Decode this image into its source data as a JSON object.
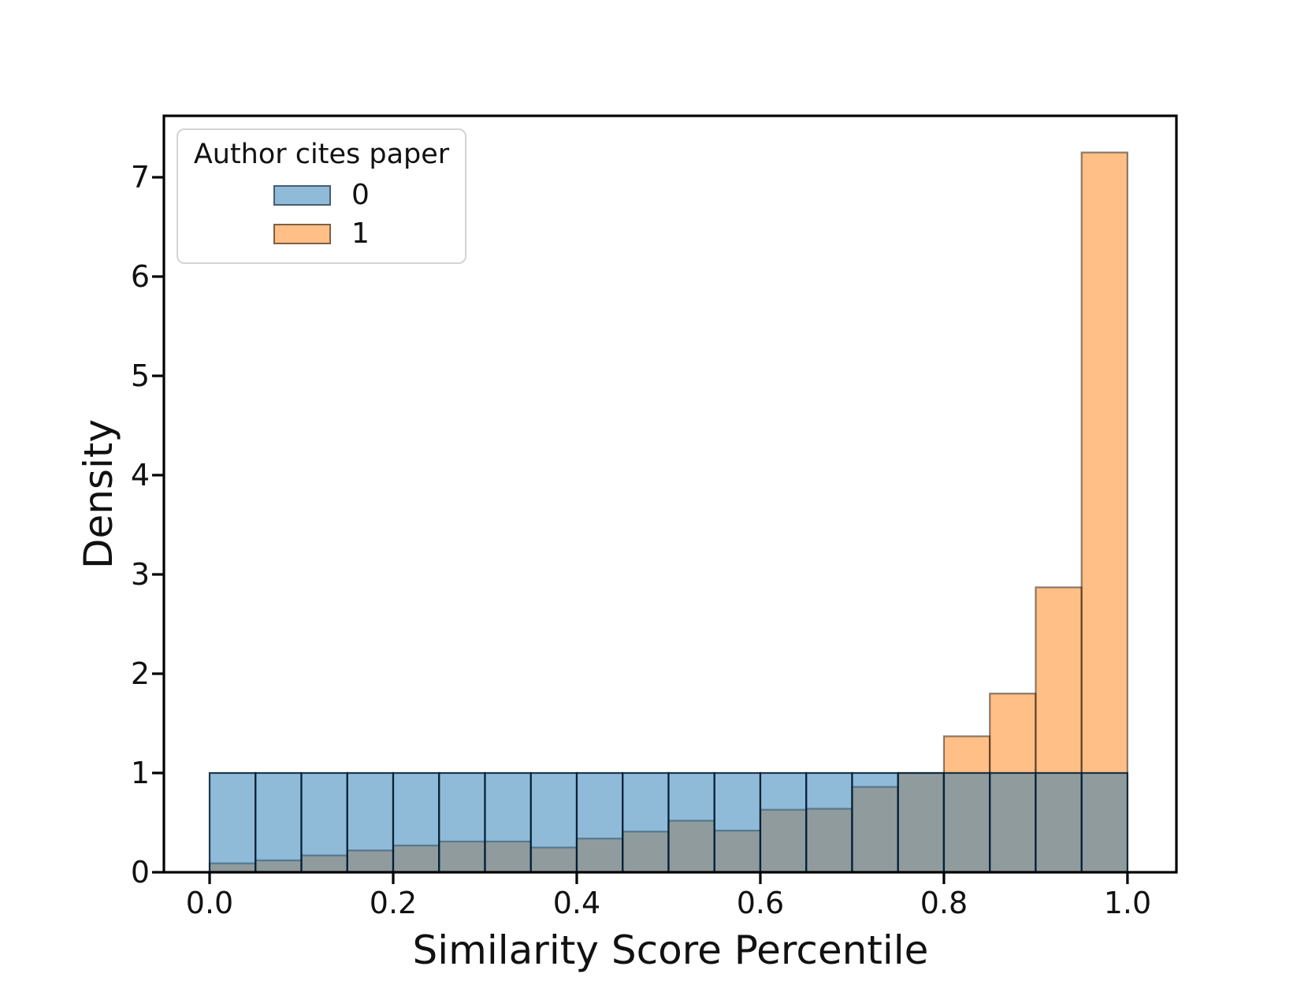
{
  "figure": {
    "background": "#ffffff",
    "text_color": "#111111",
    "spine_color": "#000000"
  },
  "chart_data": {
    "type": "histogram",
    "title": "",
    "xlabel": "Similarity Score Percentile",
    "ylabel": "Density",
    "stat": "density",
    "grid": false,
    "bin_edges": [
      0.0,
      0.05,
      0.1,
      0.15,
      0.2,
      0.25,
      0.3,
      0.35,
      0.4,
      0.45,
      0.5,
      0.55,
      0.6,
      0.65,
      0.7,
      0.75,
      0.8,
      0.85,
      0.9,
      0.95,
      1.0
    ],
    "series": [
      {
        "name": "0",
        "color": "#1f77b4",
        "fill": "rgba(31,119,180,0.5)",
        "edge": "rgba(2,28,48,0.85)",
        "values": [
          1.0,
          1.0,
          1.0,
          1.0,
          1.0,
          1.0,
          1.0,
          1.0,
          1.0,
          1.0,
          1.0,
          1.0,
          1.0,
          1.0,
          1.0,
          1.0,
          1.0,
          1.0,
          1.0,
          1.0
        ]
      },
      {
        "name": "1",
        "color": "#ff7f0e",
        "fill": "rgba(255,127,14,0.5)",
        "edge": "rgba(0,0,0,0.45)",
        "values": [
          0.09,
          0.12,
          0.17,
          0.22,
          0.27,
          0.31,
          0.31,
          0.25,
          0.34,
          0.41,
          0.52,
          0.42,
          0.63,
          0.64,
          0.86,
          1.0,
          1.37,
          1.8,
          2.87,
          7.25
        ]
      }
    ],
    "x_ticks": {
      "values": [
        0.0,
        0.2,
        0.4,
        0.6,
        0.8,
        1.0
      ],
      "labels": [
        "0.0",
        "0.2",
        "0.4",
        "0.6",
        "0.8",
        "1.0"
      ]
    },
    "y_ticks": {
      "values": [
        0,
        1,
        2,
        3,
        4,
        5,
        6,
        7
      ],
      "labels": [
        "0",
        "1",
        "2",
        "3",
        "4",
        "5",
        "6",
        "7"
      ]
    },
    "xlim": [
      -0.0498,
      1.0533
    ],
    "ylim": [
      0,
      7.619
    ],
    "legend": {
      "title": "Author cites paper",
      "position": "upper left",
      "items": [
        {
          "label": "0",
          "fill": "rgba(31,119,180,0.5)"
        },
        {
          "label": "1",
          "fill": "rgba(255,127,14,0.5)"
        }
      ]
    }
  }
}
